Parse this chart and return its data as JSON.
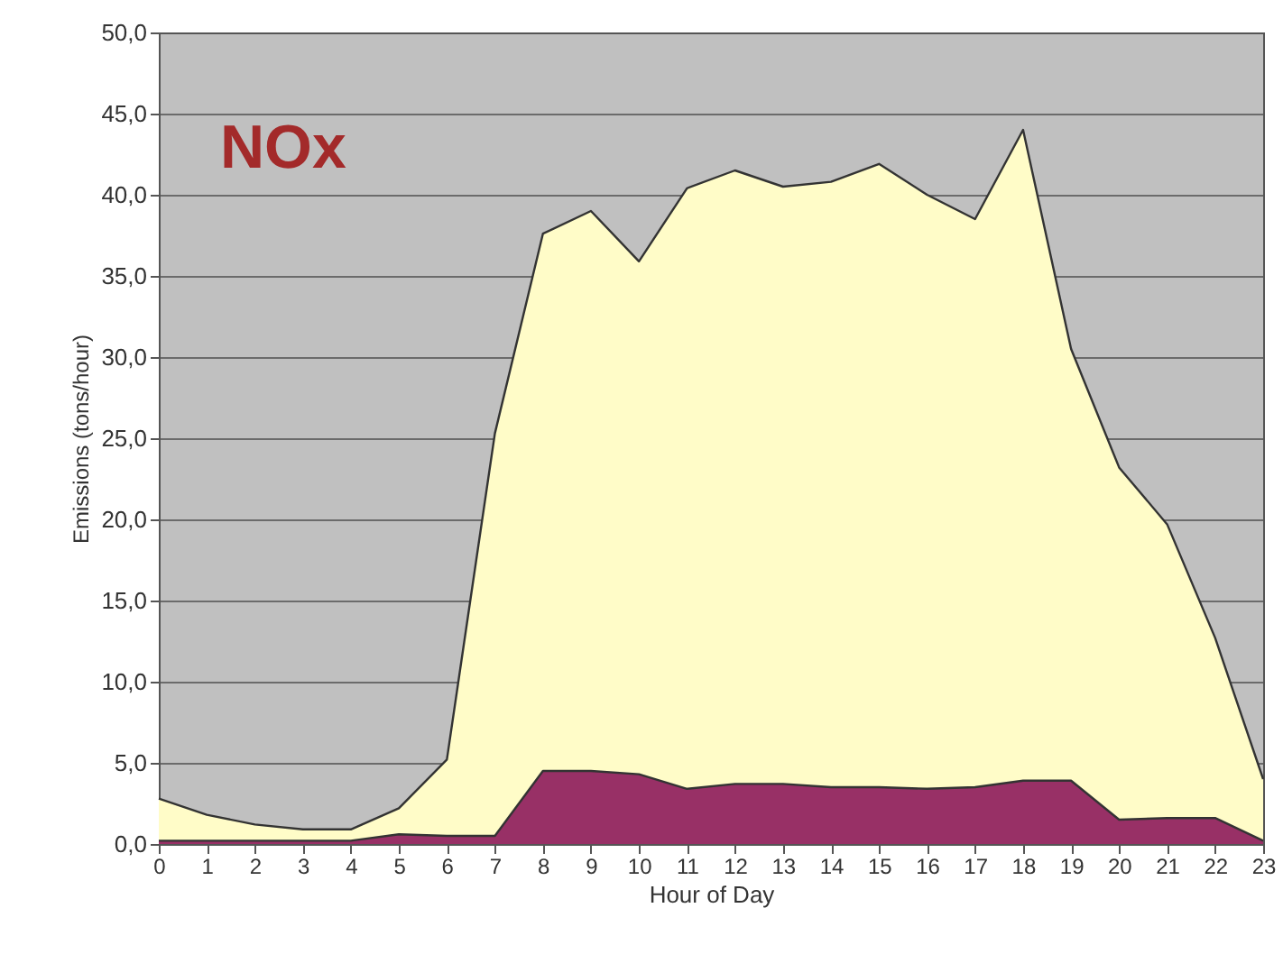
{
  "chart_data": {
    "type": "area",
    "xlabel": "Hour of Day",
    "ylabel": "Emissions (tons/hour)",
    "annotations": [
      "NOx"
    ],
    "x": [
      0,
      1,
      2,
      3,
      4,
      5,
      6,
      7,
      8,
      9,
      10,
      11,
      12,
      13,
      14,
      15,
      16,
      17,
      18,
      19,
      20,
      21,
      22,
      23
    ],
    "series": [
      {
        "color": "#fffcc8",
        "values": [
          2.8,
          1.8,
          1.2,
          0.9,
          0.9,
          2.2,
          5.2,
          25.3,
          37.6,
          39.0,
          35.9,
          40.4,
          41.5,
          40.5,
          40.8,
          41.9,
          40.0,
          38.5,
          44.0,
          30.5,
          23.2,
          19.7,
          12.7,
          4.0
        ]
      },
      {
        "color": "#983066",
        "values": [
          0.2,
          0.2,
          0.2,
          0.2,
          0.2,
          0.6,
          0.5,
          0.5,
          4.5,
          4.5,
          4.3,
          3.4,
          3.7,
          3.7,
          3.5,
          3.5,
          3.4,
          3.5,
          3.9,
          3.9,
          1.5,
          1.6,
          1.6,
          0.2
        ]
      }
    ],
    "xlim": [
      0,
      23
    ],
    "xticks": [
      0,
      1,
      2,
      3,
      4,
      5,
      6,
      7,
      8,
      9,
      10,
      11,
      12,
      13,
      14,
      15,
      16,
      17,
      18,
      19,
      20,
      21,
      22,
      23
    ],
    "ylim": [
      0,
      50
    ],
    "yticks": [
      {
        "value": 0,
        "label": "0,0"
      },
      {
        "value": 5,
        "label": "5,0"
      },
      {
        "value": 10,
        "label": "10,0"
      },
      {
        "value": 15,
        "label": "15,0"
      },
      {
        "value": 20,
        "label": "20,0"
      },
      {
        "value": 25,
        "label": "25,0"
      },
      {
        "value": 30,
        "label": "30,0"
      },
      {
        "value": 35,
        "label": "35,0"
      },
      {
        "value": 40,
        "label": "40,0"
      },
      {
        "value": 45,
        "label": "45,0"
      },
      {
        "value": 50,
        "label": "50,0"
      }
    ],
    "grid": "y"
  }
}
